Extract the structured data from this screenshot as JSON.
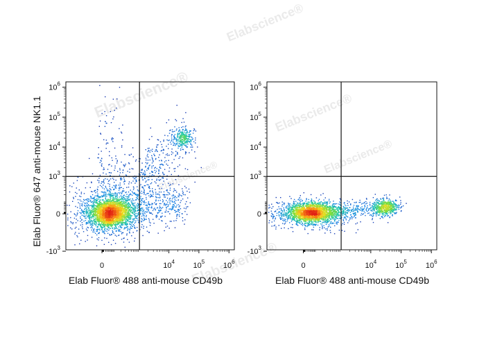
{
  "watermark": "Elabscience®",
  "chart_data": [
    {
      "type": "scatter",
      "plot": "density-dot-plot",
      "xlabel": "Elab Fluor® 488 anti-mouse CD49b",
      "ylabel": "Elab Fluor® 647 anti-mouse NK1.1",
      "x_ticks": [
        {
          "label": "0",
          "value": 0
        },
        {
          "base": "10",
          "exp": "4",
          "value": 10000
        },
        {
          "base": "10",
          "exp": "5",
          "value": 100000
        },
        {
          "base": "10",
          "exp": "6",
          "value": 1000000
        }
      ],
      "y_ticks": [
        {
          "base": "10",
          "exp": "6",
          "value": 1000000
        },
        {
          "base": "10",
          "exp": "5",
          "value": 100000
        },
        {
          "base": "10",
          "exp": "4",
          "value": 10000
        },
        {
          "base": "10",
          "exp": "3",
          "value": 1000
        },
        {
          "label": "0",
          "value": 0
        },
        {
          "base": "-10",
          "exp": "3",
          "value": -1000
        }
      ],
      "gate_x": 1000,
      "gate_y": 1000,
      "populations": [
        {
          "name": "",
          "center_x": 100,
          "center_y": 50,
          "n": 2400
        },
        {
          "name": "",
          "center_x": 30000,
          "center_y": 20000,
          "n": 280
        }
      ]
    },
    {
      "type": "scatter",
      "plot": "density-dot-plot",
      "xlabel": "Elab Fluor® 488 anti-mouse CD49b",
      "ylabel": "",
      "x_ticks": [
        {
          "label": "0",
          "value": 0
        },
        {
          "base": "10",
          "exp": "4",
          "value": 10000
        },
        {
          "base": "10",
          "exp": "5",
          "value": 100000
        },
        {
          "base": "10",
          "exp": "6",
          "value": 1000000
        }
      ],
      "y_ticks": [
        {
          "base": "10",
          "exp": "6",
          "value": 1000000
        },
        {
          "base": "10",
          "exp": "5",
          "value": 100000
        },
        {
          "base": "10",
          "exp": "4",
          "value": 10000
        },
        {
          "base": "10",
          "exp": "3",
          "value": 1000
        },
        {
          "label": "0",
          "value": 0
        },
        {
          "base": "-10",
          "exp": "3",
          "value": -1000
        }
      ],
      "gate_x": 1000,
      "gate_y": 1000,
      "populations": [
        {
          "name": "",
          "center_x": 100,
          "center_y": 40,
          "n": 1800
        },
        {
          "name": "",
          "center_x": 30000,
          "center_y": 40,
          "n": 500
        }
      ]
    }
  ]
}
